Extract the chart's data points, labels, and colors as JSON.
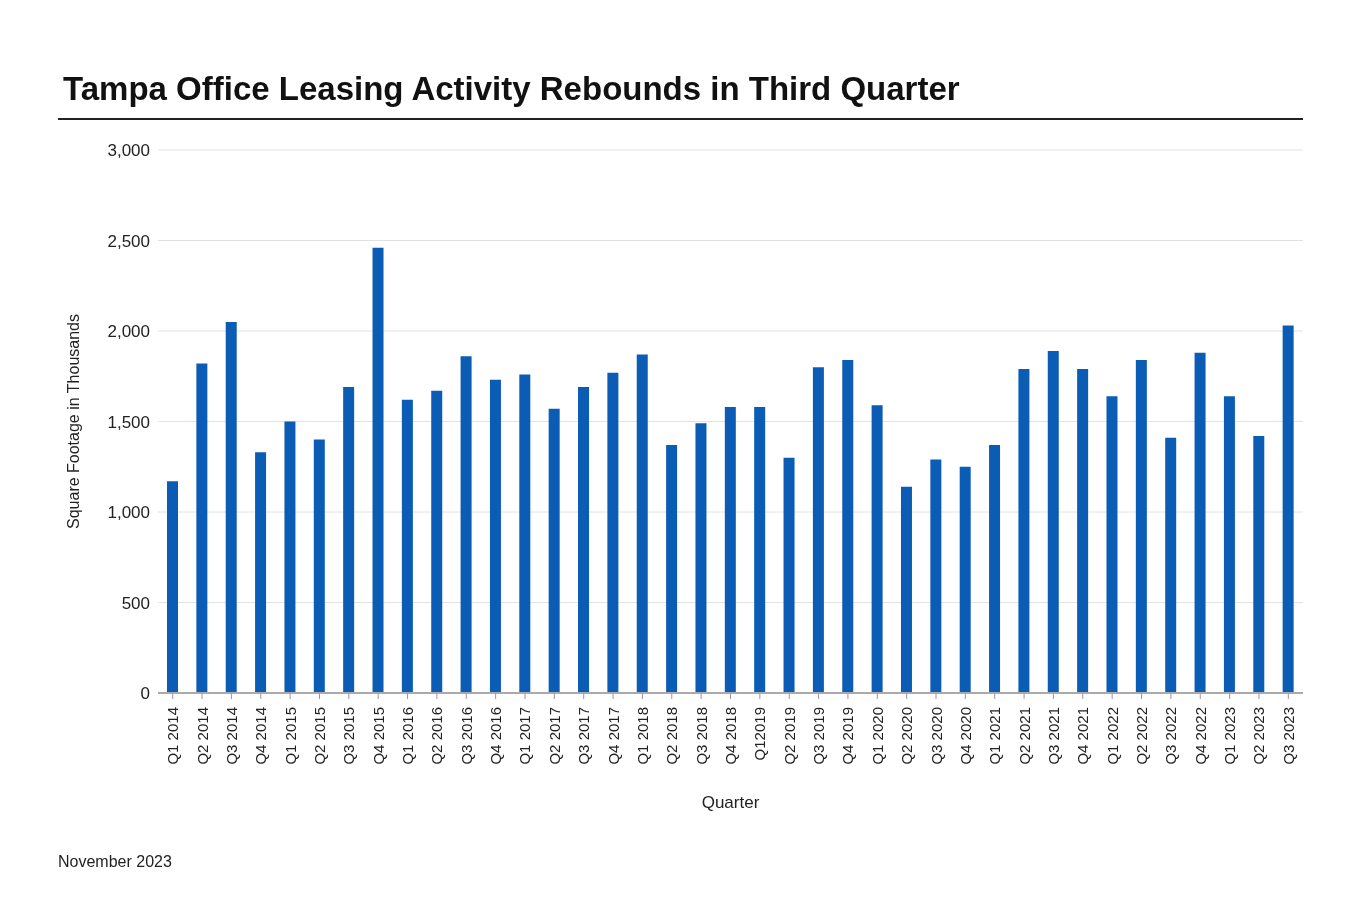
{
  "chart_data": {
    "type": "bar",
    "title": "Tampa Office Leasing Activity Rebounds in Third Quarter",
    "xlabel": "Quarter",
    "ylabel": "Square Footage in Thousands",
    "categories": [
      "Q1 2014",
      "Q2 2014",
      "Q3 2014",
      "Q4 2014",
      "Q1 2015",
      "Q2 2015",
      "Q3 2015",
      "Q4 2015",
      "Q1 2016",
      "Q2 2016",
      "Q3 2016",
      "Q4 2016",
      "Q1 2017",
      "Q2 2017",
      "Q3 2017",
      "Q4 2017",
      "Q1 2018",
      "Q2 2018",
      "Q3 2018",
      "Q4 2018",
      "Q12019",
      "Q2 2019",
      "Q3 2019",
      "Q4 2019",
      "Q1 2020",
      "Q2 2020",
      "Q3 2020",
      "Q4 2020",
      "Q1 2021",
      "Q2 2021",
      "Q3 2021",
      "Q4 2021",
      "Q1 2022",
      "Q2 2022",
      "Q3 2022",
      "Q4 2022",
      "Q1 2023",
      "Q2 2023",
      "Q3 2023"
    ],
    "values": [
      1170,
      1820,
      2050,
      1330,
      1500,
      1400,
      1690,
      2460,
      1620,
      1670,
      1860,
      1730,
      1760,
      1570,
      1690,
      1770,
      1870,
      1370,
      1490,
      1580,
      1580,
      1300,
      1800,
      1840,
      1590,
      1140,
      1290,
      1250,
      1370,
      1790,
      1890,
      1790,
      1640,
      1840,
      1410,
      1880,
      1640,
      1420,
      2030
    ],
    "color": "#0b5cb5",
    "ylim": [
      0,
      3000
    ],
    "yticks": [
      {
        "value": 0,
        "label": "0"
      },
      {
        "value": 500,
        "label": "500"
      },
      {
        "value": 1000,
        "label": "1,000"
      },
      {
        "value": 1500,
        "label": "1,500"
      },
      {
        "value": 2000,
        "label": "2,000"
      },
      {
        "value": 2500,
        "label": "2,500"
      },
      {
        "value": 3000,
        "label": "3,000"
      }
    ],
    "grid": "y",
    "annotations": [
      "November 2023"
    ]
  }
}
